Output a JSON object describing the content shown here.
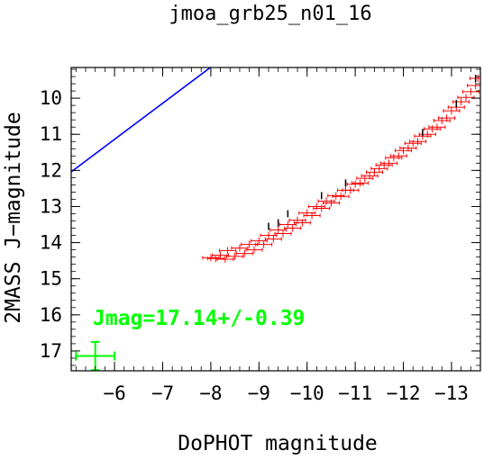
{
  "chart_data": {
    "type": "scatter",
    "title": "jmoa_grb25_n01_16",
    "xlabel": "DoPHOT magnitude",
    "ylabel": "2MASS J−magnitude",
    "xlim": [
      -5.1,
      -13.6
    ],
    "ylim": [
      17.55,
      9.15
    ],
    "xticks": [
      -6,
      -7,
      -8,
      -9,
      -10,
      -11,
      -12,
      -13
    ],
    "xtick_labels": [
      "−6",
      "−7",
      "−8",
      "−9",
      "−10",
      "−11",
      "−12",
      "−13"
    ],
    "yticks": [
      10,
      11,
      12,
      13,
      14,
      15,
      16,
      17
    ],
    "ytick_labels": [
      "10",
      "11",
      "12",
      "13",
      "14",
      "15",
      "16",
      "17"
    ],
    "grid": false,
    "fit_line": {
      "color": "#0000ff",
      "zero_point": 17.14,
      "slope": 1.0,
      "x_range": [
        -5.1,
        -13.6
      ]
    },
    "annotation": "Jmag=17.14+/-0.39",
    "error_cross": {
      "x": -5.6,
      "y": 17.14,
      "xerr": 0.4,
      "yerr": 0.39,
      "color": "#00ff00"
    },
    "series": [
      {
        "color": "#ff0000",
        "points": [
          [
            -8.0,
            14.42
          ],
          [
            -8.1,
            14.44
          ],
          [
            -8.2,
            14.35
          ],
          [
            -8.3,
            14.46
          ],
          [
            -8.35,
            14.22
          ],
          [
            -8.5,
            14.38
          ],
          [
            -8.6,
            14.15
          ],
          [
            -8.7,
            14.3
          ],
          [
            -8.8,
            14.05
          ],
          [
            -8.9,
            14.2
          ],
          [
            -9.0,
            13.95
          ],
          [
            -9.1,
            14.05
          ],
          [
            -9.2,
            13.8
          ],
          [
            -9.3,
            13.9
          ],
          [
            -9.4,
            13.65
          ],
          [
            -9.5,
            13.75
          ],
          [
            -9.6,
            13.5
          ],
          [
            -9.7,
            13.6
          ],
          [
            -9.8,
            13.38
          ],
          [
            -9.9,
            13.45
          ],
          [
            -10.0,
            13.18
          ],
          [
            -10.1,
            13.25
          ],
          [
            -10.2,
            13.0
          ],
          [
            -10.3,
            13.05
          ],
          [
            -10.4,
            12.85
          ],
          [
            -10.5,
            12.9
          ],
          [
            -10.6,
            12.7
          ],
          [
            -10.7,
            12.72
          ],
          [
            -10.8,
            12.55
          ],
          [
            -10.9,
            12.55
          ],
          [
            -11.0,
            12.38
          ],
          [
            -11.1,
            12.35
          ],
          [
            -11.2,
            12.22
          ],
          [
            -11.3,
            12.15
          ],
          [
            -11.4,
            12.05
          ],
          [
            -11.5,
            11.95
          ],
          [
            -11.6,
            11.85
          ],
          [
            -11.7,
            11.8
          ],
          [
            -11.8,
            11.65
          ],
          [
            -11.9,
            11.6
          ],
          [
            -12.0,
            11.45
          ],
          [
            -12.1,
            11.38
          ],
          [
            -12.2,
            11.25
          ],
          [
            -12.3,
            11.2
          ],
          [
            -12.4,
            11.05
          ],
          [
            -12.5,
            11.0
          ],
          [
            -12.6,
            10.85
          ],
          [
            -12.7,
            10.8
          ],
          [
            -12.8,
            10.62
          ],
          [
            -12.9,
            10.55
          ],
          [
            -13.0,
            10.35
          ],
          [
            -13.1,
            10.25
          ],
          [
            -13.2,
            10.1
          ],
          [
            -13.3,
            9.98
          ],
          [
            -13.4,
            9.82
          ],
          [
            -13.5,
            9.65
          ],
          [
            -13.55,
            9.45
          ]
        ]
      },
      {
        "color": "#000000",
        "points": [
          [
            -9.2,
            13.55
          ],
          [
            -9.4,
            13.45
          ],
          [
            -9.6,
            13.2
          ],
          [
            -10.3,
            12.7
          ],
          [
            -10.8,
            12.35
          ],
          [
            -12.4,
            10.95
          ],
          [
            -13.1,
            10.15
          ],
          [
            -13.5,
            9.45
          ]
        ]
      }
    ]
  }
}
